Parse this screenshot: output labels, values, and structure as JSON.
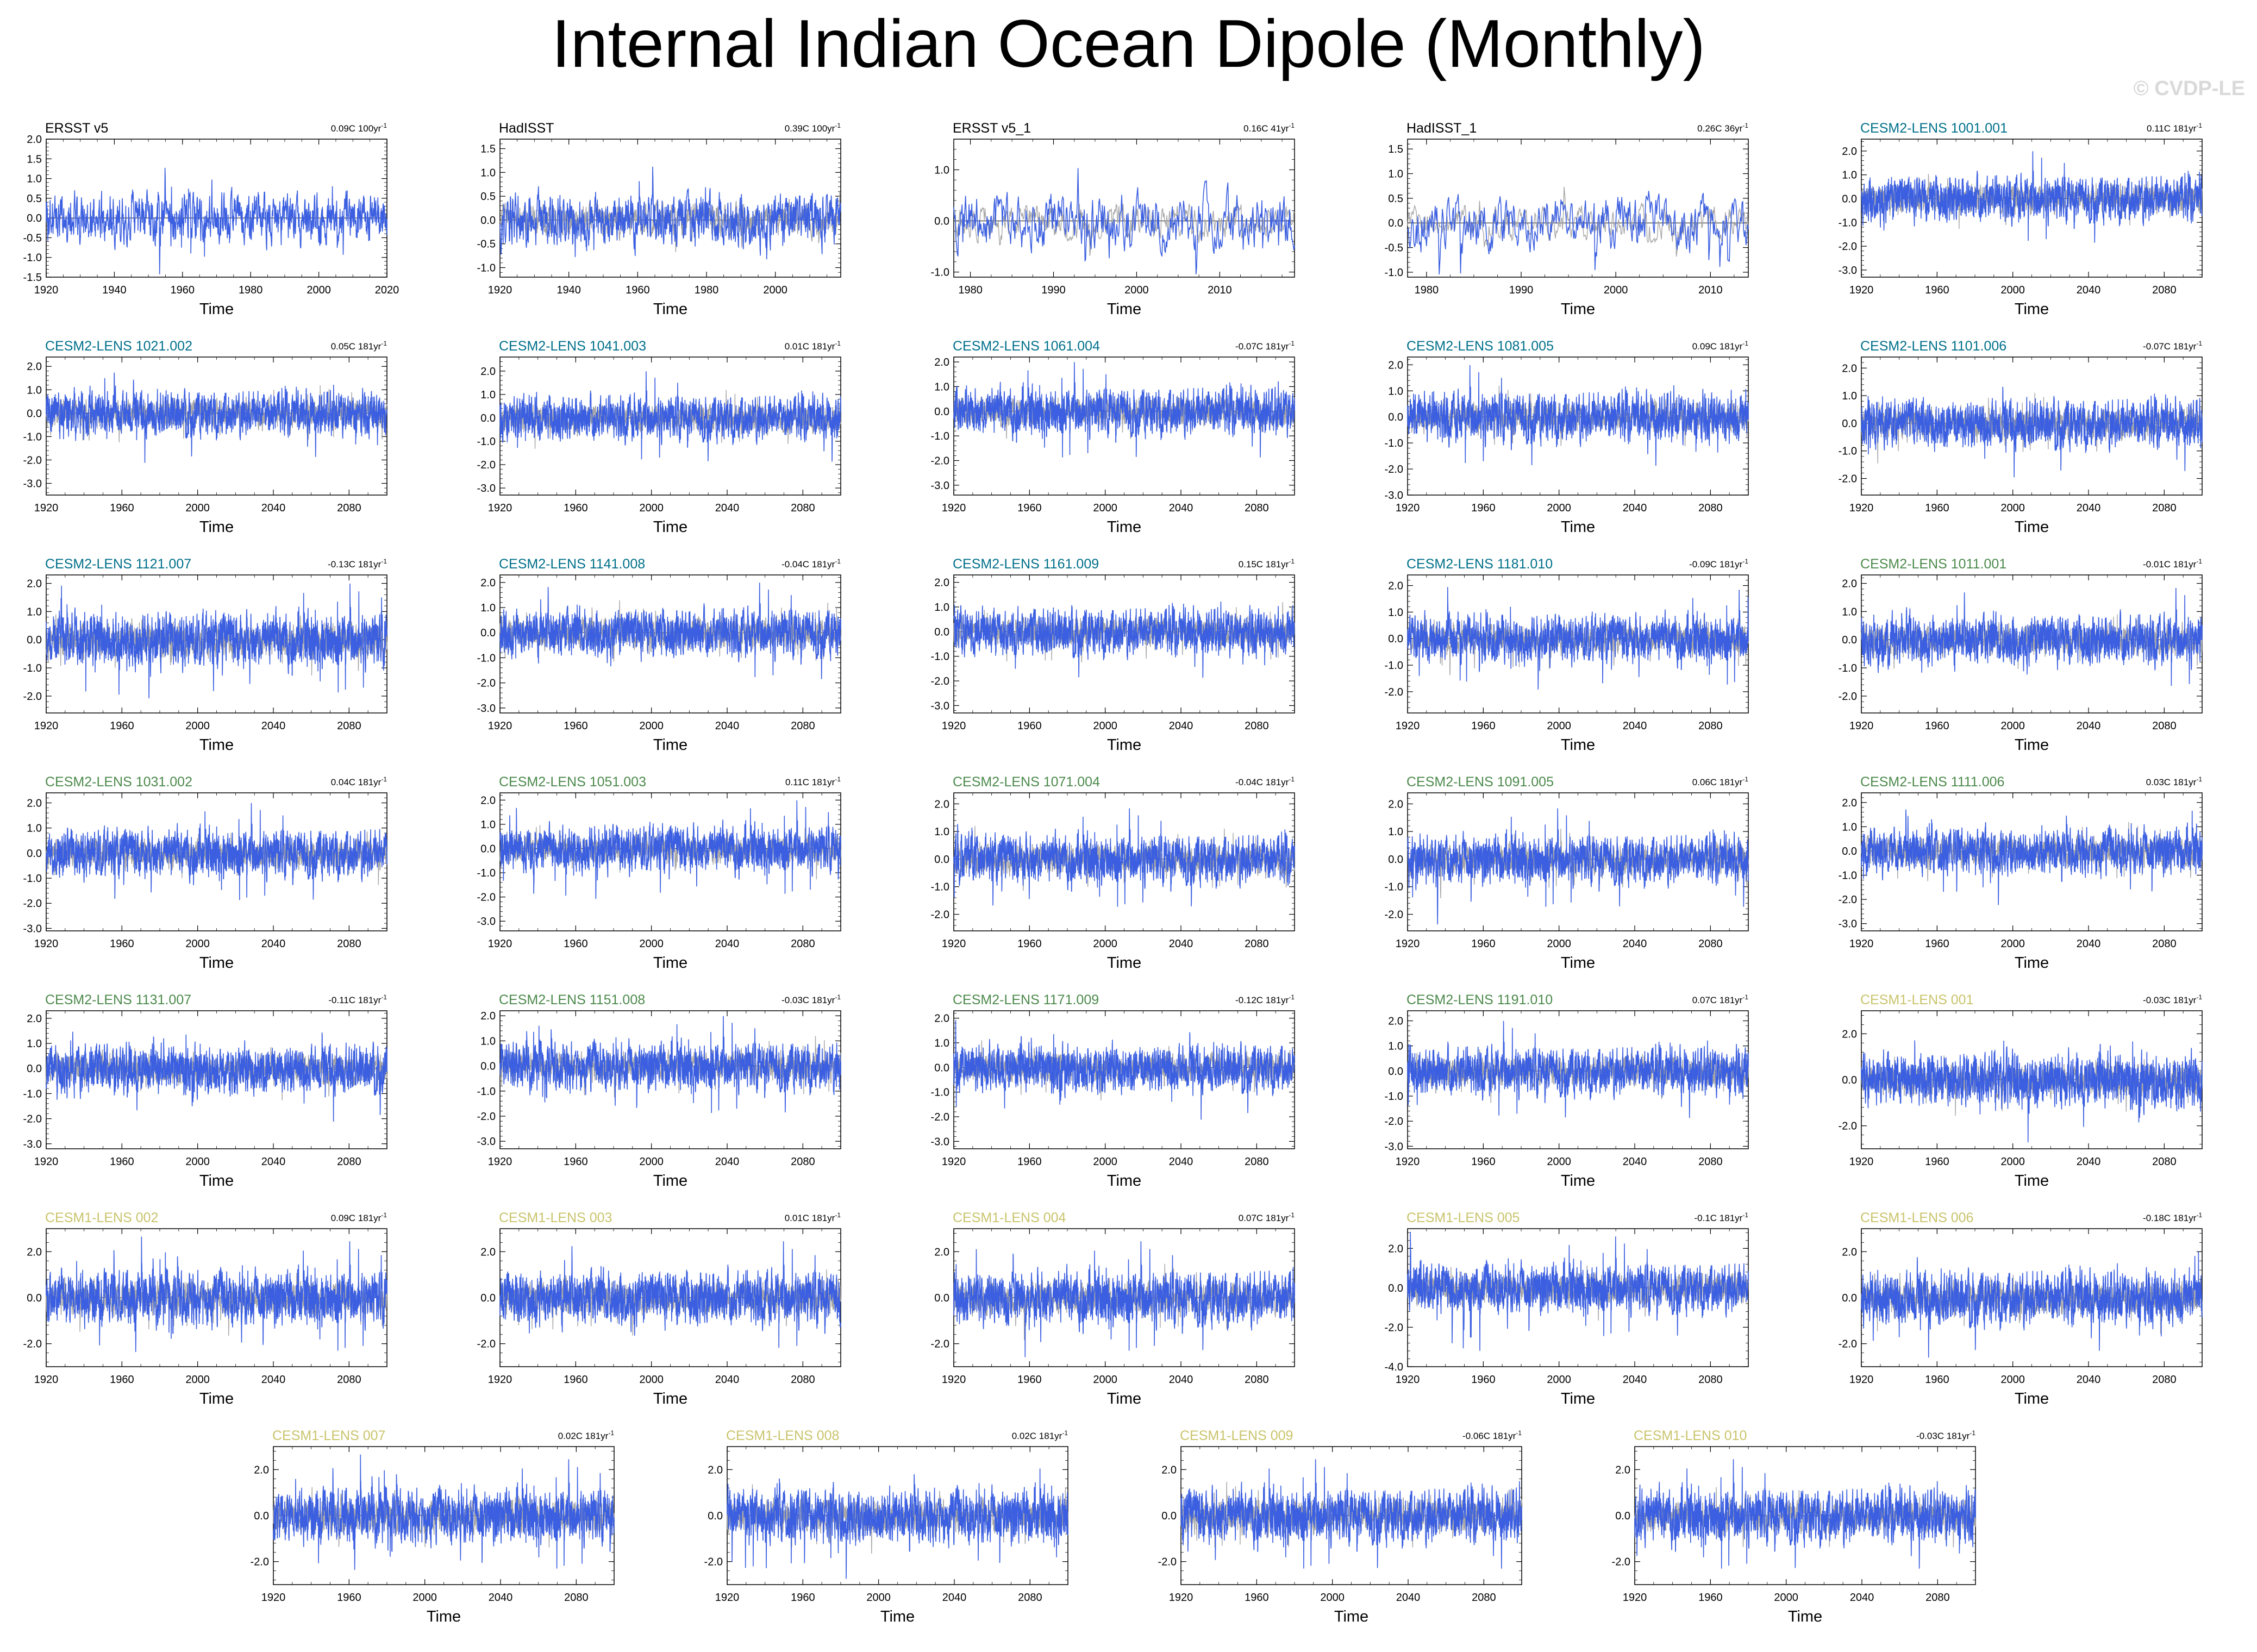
{
  "title": "Internal Indian Ocean Dipole (Monthly)",
  "watermark": "© CVDP-LE",
  "colors": {
    "obs_line": "#3b5fe0",
    "ref_line": "#a6a6a6",
    "obs_title": "#000000",
    "cesm2a_title": "#00708a",
    "cesm2b_title": "#4c8a4c",
    "cesm1_title": "#c9c46c"
  },
  "chart_data": [
    {
      "type": "line",
      "title": "ERSST v5",
      "trend": "0.09C 100yr",
      "trend_exp": "-1",
      "title_color": "#000000",
      "xlabel": "Time",
      "xticks": [
        1920,
        1940,
        1960,
        1980,
        2000,
        2020
      ],
      "xlim": [
        1920,
        2020
      ],
      "yticks": [
        "2.0",
        "1.5",
        "1.0",
        "0.5",
        "0.0",
        "-0.5",
        "-1.0",
        "-1.5"
      ],
      "ylim": [
        -1.5,
        2.0
      ],
      "seed": 11,
      "amp": 0.45,
      "ref_line": false
    },
    {
      "type": "line",
      "title": "HadISST",
      "trend": "0.39C 100yr",
      "trend_exp": "-1",
      "title_color": "#000000",
      "xlabel": "Time",
      "xticks": [
        1920,
        1940,
        1960,
        1980,
        2000
      ],
      "xlim": [
        1920,
        2019
      ],
      "yticks": [
        "1.5",
        "1.0",
        "0.5",
        "0.0",
        "-0.5",
        "-1.0"
      ],
      "ylim": [
        -1.2,
        1.7
      ],
      "seed": 12,
      "amp": 0.4,
      "ref_line": true
    },
    {
      "type": "line",
      "title": "ERSST v5_1",
      "trend": "0.16C 41yr",
      "trend_exp": "-1",
      "title_color": "#000000",
      "xlabel": "Time",
      "xticks": [
        1980,
        1990,
        2000,
        2010
      ],
      "xlim": [
        1978,
        2019
      ],
      "yticks": [
        "1.0",
        "0.0",
        "-1.0"
      ],
      "ylim": [
        -1.1,
        1.6
      ],
      "seed": 13,
      "amp": 0.4,
      "ref_line": true
    },
    {
      "type": "line",
      "title": "HadISST_1",
      "trend": "0.26C 36yr",
      "trend_exp": "-1",
      "title_color": "#000000",
      "xlabel": "Time",
      "xticks": [
        1980,
        1990,
        2000,
        2010
      ],
      "xlim": [
        1978,
        2014
      ],
      "yticks": [
        "1.5",
        "1.0",
        "0.5",
        "0.0",
        "-0.5",
        "-1.0"
      ],
      "ylim": [
        -1.1,
        1.7
      ],
      "seed": 14,
      "amp": 0.4,
      "ref_line": true
    },
    {
      "type": "line",
      "title": "CESM2-LENS 1001.001",
      "trend": "0.11C 181yr",
      "trend_exp": "-1",
      "title_color": "#00708a",
      "xlabel": "Time",
      "xticks": [
        1920,
        1960,
        2000,
        2040,
        2080
      ],
      "xlim": [
        1920,
        2100
      ],
      "yticks": [
        "2.0",
        "1.0",
        "0.0",
        "-1.0",
        "-2.0",
        "-3.0"
      ],
      "ylim": [
        -3.3,
        2.5
      ],
      "seed": 15,
      "amp": 0.65,
      "ref_line": true
    },
    {
      "type": "line",
      "title": "CESM2-LENS 1021.002",
      "trend": "0.05C 181yr",
      "trend_exp": "-1",
      "title_color": "#00708a",
      "xlabel": "Time",
      "xticks": [
        1920,
        1960,
        2000,
        2040,
        2080
      ],
      "xlim": [
        1920,
        2100
      ],
      "yticks": [
        "2.0",
        "1.0",
        "0.0",
        "-1.0",
        "-2.0",
        "-3.0"
      ],
      "ylim": [
        -3.5,
        2.4
      ],
      "seed": 21,
      "amp": 0.65,
      "ref_line": true
    },
    {
      "type": "line",
      "title": "CESM2-LENS 1041.003",
      "trend": "0.01C 181yr",
      "trend_exp": "-1",
      "title_color": "#00708a",
      "xlabel": "Time",
      "xticks": [
        1920,
        1960,
        2000,
        2040,
        2080
      ],
      "xlim": [
        1920,
        2100
      ],
      "yticks": [
        "2.0",
        "1.0",
        "0.0",
        "-1.0",
        "-2.0",
        "-3.0"
      ],
      "ylim": [
        -3.3,
        2.6
      ],
      "seed": 22,
      "amp": 0.65,
      "ref_line": true
    },
    {
      "type": "line",
      "title": "CESM2-LENS 1061.004",
      "trend": "-0.07C 181yr",
      "trend_exp": "-1",
      "title_color": "#00708a",
      "xlabel": "Time",
      "xticks": [
        1920,
        1960,
        2000,
        2040,
        2080
      ],
      "xlim": [
        1920,
        2100
      ],
      "yticks": [
        "2.0",
        "1.0",
        "0.0",
        "-1.0",
        "-2.0",
        "-3.0"
      ],
      "ylim": [
        -3.4,
        2.2
      ],
      "seed": 23,
      "amp": 0.65,
      "ref_line": true
    },
    {
      "type": "line",
      "title": "CESM2-LENS 1081.005",
      "trend": "0.09C 181yr",
      "trend_exp": "-1",
      "title_color": "#00708a",
      "xlabel": "Time",
      "xticks": [
        1920,
        1960,
        2000,
        2040,
        2080
      ],
      "xlim": [
        1920,
        2100
      ],
      "yticks": [
        "2.0",
        "1.0",
        "0.0",
        "-1.0",
        "-2.0",
        "-3.0"
      ],
      "ylim": [
        -3.0,
        2.3
      ],
      "seed": 24,
      "amp": 0.65,
      "ref_line": true
    },
    {
      "type": "line",
      "title": "CESM2-LENS 1101.006",
      "trend": "-0.07C 181yr",
      "trend_exp": "-1",
      "title_color": "#00708a",
      "xlabel": "Time",
      "xticks": [
        1920,
        1960,
        2000,
        2040,
        2080
      ],
      "xlim": [
        1920,
        2100
      ],
      "yticks": [
        "2.0",
        "1.0",
        "0.0",
        "-1.0",
        "-2.0"
      ],
      "ylim": [
        -2.6,
        2.4
      ],
      "seed": 25,
      "amp": 0.6,
      "ref_line": true
    },
    {
      "type": "line",
      "title": "CESM2-LENS 1121.007",
      "trend": "-0.13C 181yr",
      "trend_exp": "-1",
      "title_color": "#00708a",
      "xlabel": "Time",
      "xticks": [
        1920,
        1960,
        2000,
        2040,
        2080
      ],
      "xlim": [
        1920,
        2100
      ],
      "yticks": [
        "2.0",
        "1.0",
        "0.0",
        "-1.0",
        "-2.0"
      ],
      "ylim": [
        -2.6,
        2.3
      ],
      "seed": 31,
      "amp": 0.65,
      "ref_line": true
    },
    {
      "type": "line",
      "title": "CESM2-LENS 1141.008",
      "trend": "-0.04C 181yr",
      "trend_exp": "-1",
      "title_color": "#00708a",
      "xlabel": "Time",
      "xticks": [
        1920,
        1960,
        2000,
        2040,
        2080
      ],
      "xlim": [
        1920,
        2100
      ],
      "yticks": [
        "2.0",
        "1.0",
        "0.0",
        "-1.0",
        "-2.0",
        "-3.0"
      ],
      "ylim": [
        -3.2,
        2.3
      ],
      "seed": 32,
      "amp": 0.65,
      "ref_line": true
    },
    {
      "type": "line",
      "title": "CESM2-LENS 1161.009",
      "trend": "0.15C 181yr",
      "trend_exp": "-1",
      "title_color": "#00708a",
      "xlabel": "Time",
      "xticks": [
        1920,
        1960,
        2000,
        2040,
        2080
      ],
      "xlim": [
        1920,
        2100
      ],
      "yticks": [
        "2.0",
        "1.0",
        "0.0",
        "-1.0",
        "-2.0",
        "-3.0"
      ],
      "ylim": [
        -3.3,
        2.3
      ],
      "seed": 33,
      "amp": 0.65,
      "ref_line": true
    },
    {
      "type": "line",
      "title": "CESM2-LENS 1181.010",
      "trend": "-0.09C 181yr",
      "trend_exp": "-1",
      "title_color": "#00708a",
      "xlabel": "Time",
      "xticks": [
        1920,
        1960,
        2000,
        2040,
        2080
      ],
      "xlim": [
        1920,
        2100
      ],
      "yticks": [
        "2.0",
        "1.0",
        "0.0",
        "-1.0",
        "-2.0"
      ],
      "ylim": [
        -2.8,
        2.4
      ],
      "seed": 34,
      "amp": 0.6,
      "ref_line": true
    },
    {
      "type": "line",
      "title": "CESM2-LENS 1011.001",
      "trend": "-0.01C 181yr",
      "trend_exp": "-1",
      "title_color": "#4c8a4c",
      "xlabel": "Time",
      "xticks": [
        1920,
        1960,
        2000,
        2040,
        2080
      ],
      "xlim": [
        1920,
        2100
      ],
      "yticks": [
        "2.0",
        "1.0",
        "0.0",
        "-1.0",
        "-2.0"
      ],
      "ylim": [
        -2.6,
        2.3
      ],
      "seed": 35,
      "amp": 0.6,
      "ref_line": true
    },
    {
      "type": "line",
      "title": "CESM2-LENS 1031.002",
      "trend": "0.04C 181yr",
      "trend_exp": "-1",
      "title_color": "#4c8a4c",
      "xlabel": "Time",
      "xticks": [
        1920,
        1960,
        2000,
        2040,
        2080
      ],
      "xlim": [
        1920,
        2100
      ],
      "yticks": [
        "2.0",
        "1.0",
        "0.0",
        "-1.0",
        "-2.0",
        "-3.0"
      ],
      "ylim": [
        -3.1,
        2.4
      ],
      "seed": 41,
      "amp": 0.65,
      "ref_line": true
    },
    {
      "type": "line",
      "title": "CESM2-LENS 1051.003",
      "trend": "0.11C 181yr",
      "trend_exp": "-1",
      "title_color": "#4c8a4c",
      "xlabel": "Time",
      "xticks": [
        1920,
        1960,
        2000,
        2040,
        2080
      ],
      "xlim": [
        1920,
        2100
      ],
      "yticks": [
        "2.0",
        "1.0",
        "0.0",
        "-1.0",
        "-2.0",
        "-3.0"
      ],
      "ylim": [
        -3.4,
        2.3
      ],
      "seed": 42,
      "amp": 0.65,
      "ref_line": true
    },
    {
      "type": "line",
      "title": "CESM2-LENS 1071.004",
      "trend": "-0.04C 181yr",
      "trend_exp": "-1",
      "title_color": "#4c8a4c",
      "xlabel": "Time",
      "xticks": [
        1920,
        1960,
        2000,
        2040,
        2080
      ],
      "xlim": [
        1920,
        2100
      ],
      "yticks": [
        "2.0",
        "1.0",
        "0.0",
        "-1.0",
        "-2.0"
      ],
      "ylim": [
        -2.6,
        2.4
      ],
      "seed": 43,
      "amp": 0.6,
      "ref_line": true
    },
    {
      "type": "line",
      "title": "CESM2-LENS 1091.005",
      "trend": "0.06C 181yr",
      "trend_exp": "-1",
      "title_color": "#4c8a4c",
      "xlabel": "Time",
      "xticks": [
        1920,
        1960,
        2000,
        2040,
        2080
      ],
      "xlim": [
        1920,
        2100
      ],
      "yticks": [
        "2.0",
        "1.0",
        "0.0",
        "-1.0",
        "-2.0"
      ],
      "ylim": [
        -2.6,
        2.4
      ],
      "seed": 44,
      "amp": 0.6,
      "ref_line": true
    },
    {
      "type": "line",
      "title": "CESM2-LENS 1111.006",
      "trend": "0.03C 181yr",
      "trend_exp": "-1",
      "title_color": "#4c8a4c",
      "xlabel": "Time",
      "xticks": [
        1920,
        1960,
        2000,
        2040,
        2080
      ],
      "xlim": [
        1920,
        2100
      ],
      "yticks": [
        "2.0",
        "1.0",
        "0.0",
        "-1.0",
        "-2.0",
        "-3.0"
      ],
      "ylim": [
        -3.3,
        2.4
      ],
      "seed": 45,
      "amp": 0.65,
      "ref_line": true
    },
    {
      "type": "line",
      "title": "CESM2-LENS 1131.007",
      "trend": "-0.11C 181yr",
      "trend_exp": "-1",
      "title_color": "#4c8a4c",
      "xlabel": "Time",
      "xticks": [
        1920,
        1960,
        2000,
        2040,
        2080
      ],
      "xlim": [
        1920,
        2100
      ],
      "yticks": [
        "2.0",
        "1.0",
        "0.0",
        "-1.0",
        "-2.0",
        "-3.0"
      ],
      "ylim": [
        -3.2,
        2.3
      ],
      "seed": 51,
      "amp": 0.65,
      "ref_line": true
    },
    {
      "type": "line",
      "title": "CESM2-LENS 1151.008",
      "trend": "-0.03C 181yr",
      "trend_exp": "-1",
      "title_color": "#4c8a4c",
      "xlabel": "Time",
      "xticks": [
        1920,
        1960,
        2000,
        2040,
        2080
      ],
      "xlim": [
        1920,
        2100
      ],
      "yticks": [
        "2.0",
        "1.0",
        "0.0",
        "-1.0",
        "-2.0",
        "-3.0"
      ],
      "ylim": [
        -3.3,
        2.2
      ],
      "seed": 52,
      "amp": 0.65,
      "ref_line": true
    },
    {
      "type": "line",
      "title": "CESM2-LENS 1171.009",
      "trend": "-0.12C 181yr",
      "trend_exp": "-1",
      "title_color": "#4c8a4c",
      "xlabel": "Time",
      "xticks": [
        1920,
        1960,
        2000,
        2040,
        2080
      ],
      "xlim": [
        1920,
        2100
      ],
      "yticks": [
        "2.0",
        "1.0",
        "0.0",
        "-1.0",
        "-2.0",
        "-3.0"
      ],
      "ylim": [
        -3.3,
        2.3
      ],
      "seed": 53,
      "amp": 0.65,
      "ref_line": true
    },
    {
      "type": "line",
      "title": "CESM2-LENS 1191.010",
      "trend": "0.07C 181yr",
      "trend_exp": "-1",
      "title_color": "#4c8a4c",
      "xlabel": "Time",
      "xticks": [
        1920,
        1960,
        2000,
        2040,
        2080
      ],
      "xlim": [
        1920,
        2100
      ],
      "yticks": [
        "2.0",
        "1.0",
        "0.0",
        "-1.0",
        "-2.0",
        "-3.0"
      ],
      "ylim": [
        -3.1,
        2.4
      ],
      "seed": 54,
      "amp": 0.65,
      "ref_line": true
    },
    {
      "type": "line",
      "title": "CESM1-LENS 001",
      "trend": "-0.03C 181yr",
      "trend_exp": "-1",
      "title_color": "#c9c46c",
      "xlabel": "Time",
      "xticks": [
        1920,
        1960,
        2000,
        2040,
        2080
      ],
      "xlim": [
        1920,
        2100
      ],
      "yticks": [
        "2.0",
        "0.0",
        "-2.0"
      ],
      "ylim": [
        -3.0,
        3.0
      ],
      "seed": 55,
      "amp": 0.8,
      "ref_line": true
    },
    {
      "type": "line",
      "title": "CESM1-LENS 002",
      "trend": "0.09C 181yr",
      "trend_exp": "-1",
      "title_color": "#c9c46c",
      "xlabel": "Time",
      "xticks": [
        1920,
        1960,
        2000,
        2040,
        2080
      ],
      "xlim": [
        1920,
        2100
      ],
      "yticks": [
        "2.0",
        "0.0",
        "-2.0"
      ],
      "ylim": [
        -3.0,
        3.0
      ],
      "seed": 61,
      "amp": 0.8,
      "ref_line": true
    },
    {
      "type": "line",
      "title": "CESM1-LENS 003",
      "trend": "0.01C 181yr",
      "trend_exp": "-1",
      "title_color": "#c9c46c",
      "xlabel": "Time",
      "xticks": [
        1920,
        1960,
        2000,
        2040,
        2080
      ],
      "xlim": [
        1920,
        2100
      ],
      "yticks": [
        "2.0",
        "0.0",
        "-2.0"
      ],
      "ylim": [
        -3.0,
        3.0
      ],
      "seed": 62,
      "amp": 0.8,
      "ref_line": true
    },
    {
      "type": "line",
      "title": "CESM1-LENS 004",
      "trend": "0.07C 181yr",
      "trend_exp": "-1",
      "title_color": "#c9c46c",
      "xlabel": "Time",
      "xticks": [
        1920,
        1960,
        2000,
        2040,
        2080
      ],
      "xlim": [
        1920,
        2100
      ],
      "yticks": [
        "2.0",
        "0.0",
        "-2.0"
      ],
      "ylim": [
        -3.0,
        3.0
      ],
      "seed": 63,
      "amp": 0.8,
      "ref_line": true
    },
    {
      "type": "line",
      "title": "CESM1-LENS 005",
      "trend": "-0.1C 181yr",
      "trend_exp": "-1",
      "title_color": "#c9c46c",
      "xlabel": "Time",
      "xticks": [
        1920,
        1960,
        2000,
        2040,
        2080
      ],
      "xlim": [
        1920,
        2100
      ],
      "yticks": [
        "2.0",
        "0.0",
        "-2.0",
        "-4.0"
      ],
      "ylim": [
        -4.0,
        3.0
      ],
      "seed": 64,
      "amp": 0.85,
      "ref_line": true
    },
    {
      "type": "line",
      "title": "CESM1-LENS 006",
      "trend": "-0.18C 181yr",
      "trend_exp": "-1",
      "title_color": "#c9c46c",
      "xlabel": "Time",
      "xticks": [
        1920,
        1960,
        2000,
        2040,
        2080
      ],
      "xlim": [
        1920,
        2100
      ],
      "yticks": [
        "2.0",
        "0.0",
        "-2.0"
      ],
      "ylim": [
        -3.0,
        3.0
      ],
      "seed": 65,
      "amp": 0.8,
      "ref_line": true
    },
    {
      "type": "line",
      "title": "CESM1-LENS 007",
      "trend": "0.02C 181yr",
      "trend_exp": "-1",
      "title_color": "#c9c46c",
      "xlabel": "Time",
      "xticks": [
        1920,
        1960,
        2000,
        2040,
        2080
      ],
      "xlim": [
        1920,
        2100
      ],
      "yticks": [
        "2.0",
        "0.0",
        "-2.0"
      ],
      "ylim": [
        -3.0,
        3.0
      ],
      "seed": 71,
      "amp": 0.8,
      "ref_line": true
    },
    {
      "type": "line",
      "title": "CESM1-LENS 008",
      "trend": "0.02C 181yr",
      "trend_exp": "-1",
      "title_color": "#c9c46c",
      "xlabel": "Time",
      "xticks": [
        1920,
        1960,
        2000,
        2040,
        2080
      ],
      "xlim": [
        1920,
        2100
      ],
      "yticks": [
        "2.0",
        "0.0",
        "-2.0"
      ],
      "ylim": [
        -3.0,
        3.0
      ],
      "seed": 72,
      "amp": 0.8,
      "ref_line": true
    },
    {
      "type": "line",
      "title": "CESM1-LENS 009",
      "trend": "-0.06C 181yr",
      "trend_exp": "-1",
      "title_color": "#c9c46c",
      "xlabel": "Time",
      "xticks": [
        1920,
        1960,
        2000,
        2040,
        2080
      ],
      "xlim": [
        1920,
        2100
      ],
      "yticks": [
        "2.0",
        "0.0",
        "-2.0"
      ],
      "ylim": [
        -3.0,
        3.0
      ],
      "seed": 73,
      "amp": 0.8,
      "ref_line": true
    },
    {
      "type": "line",
      "title": "CESM1-LENS 010",
      "trend": "-0.03C 181yr",
      "trend_exp": "-1",
      "title_color": "#c9c46c",
      "xlabel": "Time",
      "xticks": [
        1920,
        1960,
        2000,
        2040,
        2080
      ],
      "xlim": [
        1920,
        2100
      ],
      "yticks": [
        "2.0",
        "0.0",
        "-2.0"
      ],
      "ylim": [
        -3.0,
        3.0
      ],
      "seed": 74,
      "amp": 0.8,
      "ref_line": true
    }
  ]
}
